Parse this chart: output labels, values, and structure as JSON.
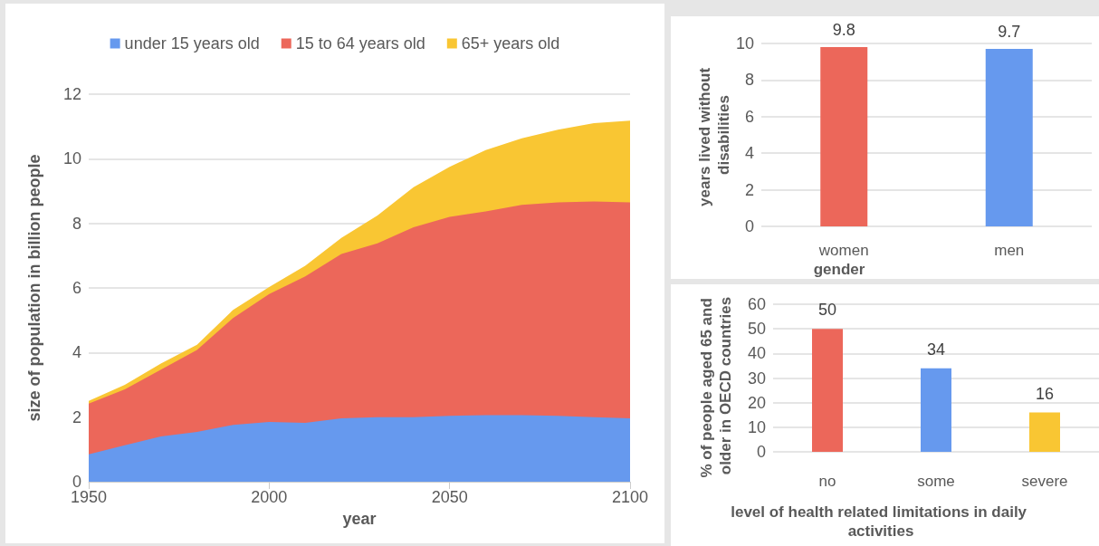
{
  "chart_data": [
    {
      "type": "area",
      "stacked": true,
      "xlabel": "year",
      "ylabel": "size of population in billion people",
      "x": [
        1950,
        1960,
        1970,
        1980,
        1990,
        2000,
        2010,
        2020,
        2030,
        2040,
        2050,
        2060,
        2070,
        2080,
        2090,
        2100
      ],
      "xlim": [
        1950,
        2100
      ],
      "xticks": [
        1950,
        2000,
        2050,
        2100
      ],
      "ylim": [
        0,
        12
      ],
      "yticks": [
        0,
        2,
        4,
        6,
        8,
        10,
        12
      ],
      "grid": "y",
      "legend": "top",
      "series": [
        {
          "name": "under 15 years old",
          "color": "#6699ee",
          "values": [
            0.85,
            1.13,
            1.4,
            1.54,
            1.76,
            1.85,
            1.82,
            1.96,
            2.0,
            2.0,
            2.04,
            2.06,
            2.06,
            2.04,
            2.0,
            1.96
          ]
        },
        {
          "name": "15 to 64 years old",
          "color": "#ec675a",
          "values": [
            1.57,
            1.73,
            2.07,
            2.54,
            3.31,
            3.96,
            4.54,
            5.09,
            5.38,
            5.88,
            6.16,
            6.31,
            6.51,
            6.61,
            6.68,
            6.69
          ]
        },
        {
          "name": "65+ years old",
          "color": "#f9c633",
          "values": [
            0.08,
            0.14,
            0.19,
            0.16,
            0.25,
            0.22,
            0.33,
            0.5,
            0.86,
            1.24,
            1.55,
            1.9,
            2.06,
            2.25,
            2.42,
            2.53
          ]
        }
      ]
    },
    {
      "type": "bar",
      "xlabel": "gender",
      "ylabel": "years lived without disabilities",
      "categories": [
        "women",
        "men"
      ],
      "values": [
        9.8,
        9.7
      ],
      "colors": [
        "#ec675a",
        "#6699ee"
      ],
      "ylim": [
        0,
        10
      ],
      "yticks": [
        0,
        2,
        4,
        6,
        8,
        10
      ],
      "grid": "y",
      "data_labels": true
    },
    {
      "type": "bar",
      "xlabel": "level of health related limitations in daily activities",
      "ylabel": "% of people aged 65 and older in OECD countries",
      "categories": [
        "no",
        "some",
        "severe"
      ],
      "values": [
        50,
        34,
        16
      ],
      "colors": [
        "#ec675a",
        "#6699ee",
        "#f9c633"
      ],
      "ylim": [
        0,
        60
      ],
      "yticks": [
        0,
        10,
        20,
        30,
        40,
        50,
        60
      ],
      "grid": "y",
      "data_labels": true
    }
  ]
}
